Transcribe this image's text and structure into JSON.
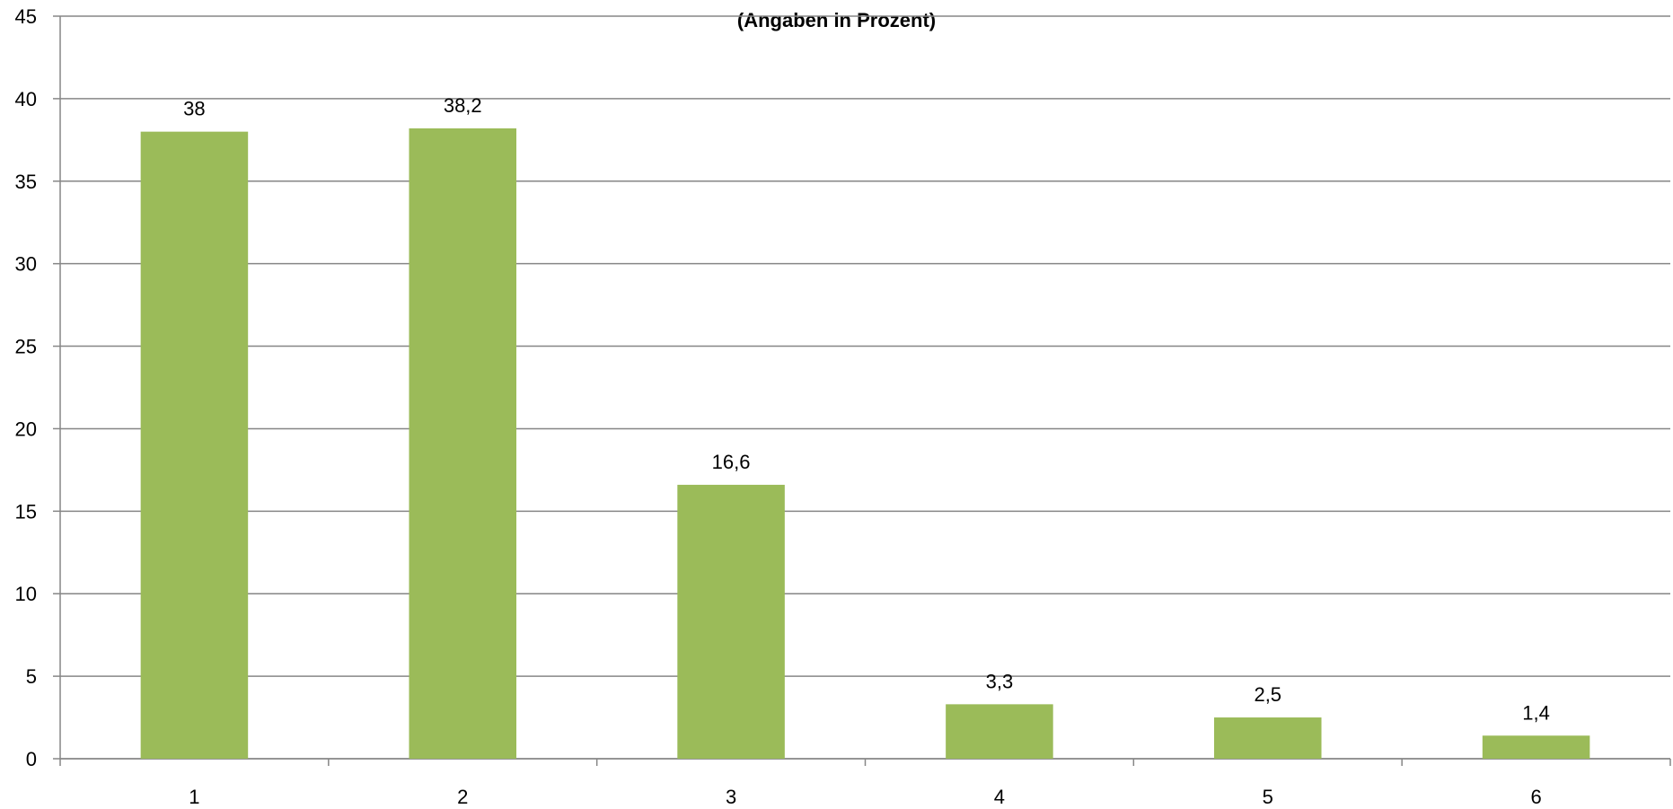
{
  "chart_data": {
    "type": "bar",
    "title": "",
    "subtitle": "(Angaben in Prozent)",
    "xlabel": "",
    "ylabel": "",
    "categories": [
      "1",
      "2",
      "3",
      "4",
      "5",
      "6"
    ],
    "values": [
      38,
      38.2,
      16.6,
      3.3,
      2.5,
      1.4
    ],
    "data_labels": [
      "38",
      "38,2",
      "16,6",
      "3,3",
      "2,5",
      "1,4"
    ],
    "ylim": [
      0,
      45
    ],
    "yticks": [
      0,
      5,
      10,
      15,
      20,
      25,
      30,
      35,
      40,
      45
    ],
    "grid": true,
    "legend": "none",
    "bar_color": "#9bbb59",
    "grid_color": "#868686",
    "axis_color": "#868686"
  }
}
